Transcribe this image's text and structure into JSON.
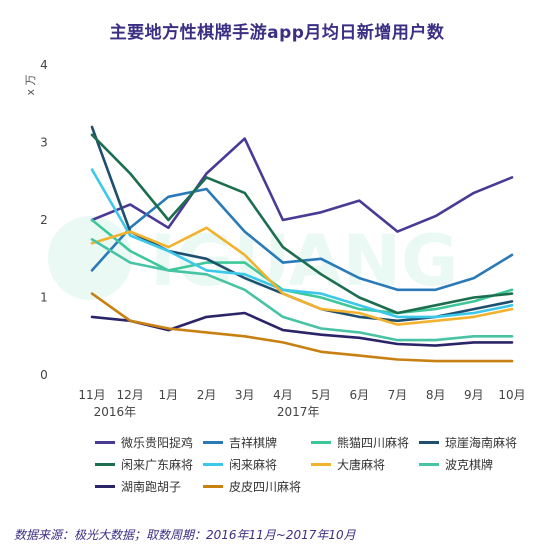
{
  "chart_data": {
    "type": "line",
    "title": "主要地方性棋牌手游app月均日新增用户数",
    "ylabel": "x 万",
    "ylim": [
      0,
      4
    ],
    "yticks": [
      "0",
      "1",
      "2",
      "3",
      "4"
    ],
    "categories": [
      "11月",
      "12月",
      "1月",
      "2月",
      "3月",
      "4月",
      "5月",
      "6月",
      "7月",
      "8月",
      "9月",
      "10月"
    ],
    "year_labels": [
      "2016年",
      "2017年"
    ],
    "grid": false,
    "legend_position": "bottom",
    "series": [
      {
        "name": "微乐贵阳捉鸡",
        "color": "#4a3a96",
        "values": [
          2.0,
          2.2,
          1.9,
          2.6,
          3.05,
          2.0,
          2.1,
          2.25,
          1.85,
          2.05,
          2.35,
          2.55
        ]
      },
      {
        "name": "吉祥棋牌",
        "color": "#2a7ab8",
        "values": [
          1.35,
          1.9,
          2.3,
          2.4,
          1.85,
          1.45,
          1.5,
          1.25,
          1.1,
          1.1,
          1.25,
          1.55
        ]
      },
      {
        "name": "熊猫四川麻将",
        "color": "#3ec79a",
        "values": [
          2.0,
          1.6,
          1.35,
          1.45,
          1.45,
          1.1,
          1.0,
          0.85,
          0.8,
          0.85,
          0.95,
          1.1
        ]
      },
      {
        "name": "琼崖海南麻将",
        "color": "#1f4f6f",
        "values": [
          3.2,
          1.85,
          1.6,
          1.5,
          1.25,
          1.05,
          0.85,
          0.75,
          0.7,
          0.75,
          0.85,
          0.95
        ]
      },
      {
        "name": "闲来广东麻将",
        "color": "#1d6e4e",
        "values": [
          3.1,
          2.6,
          2.0,
          2.55,
          2.35,
          1.65,
          1.3,
          1.0,
          0.8,
          0.9,
          1.0,
          1.05
        ]
      },
      {
        "name": "闲来麻将",
        "color": "#3cc8e8",
        "values": [
          2.65,
          1.8,
          1.6,
          1.35,
          1.3,
          1.1,
          1.05,
          0.9,
          0.75,
          0.75,
          0.8,
          0.9
        ]
      },
      {
        "name": "大唐麻将",
        "color": "#f2b22e",
        "values": [
          1.7,
          1.85,
          1.65,
          1.9,
          1.55,
          1.05,
          0.85,
          0.8,
          0.65,
          0.7,
          0.75,
          0.85
        ]
      },
      {
        "name": "波克棋牌",
        "color": "#48c4a4",
        "values": [
          1.75,
          1.45,
          1.35,
          1.3,
          1.1,
          0.75,
          0.6,
          0.55,
          0.45,
          0.45,
          0.5,
          0.5
        ]
      },
      {
        "name": "湖南跑胡子",
        "color": "#2b2468",
        "values": [
          0.75,
          0.7,
          0.58,
          0.75,
          0.8,
          0.58,
          0.52,
          0.48,
          0.4,
          0.38,
          0.42,
          0.42
        ]
      },
      {
        "name": "皮皮四川麻将",
        "color": "#c98012",
        "values": [
          1.05,
          0.7,
          0.6,
          0.55,
          0.5,
          0.42,
          0.3,
          0.25,
          0.2,
          0.18,
          0.18,
          0.18
        ]
      }
    ]
  },
  "source_note": "数据来源：极光大数据；取数周期：2016年11月~2017年10月"
}
